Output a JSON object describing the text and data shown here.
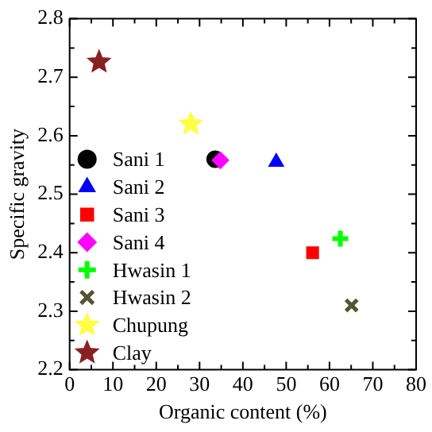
{
  "chart_data": {
    "type": "scatter",
    "xlabel": "Organic content (%)",
    "ylabel": "Specific gravity",
    "xlim": [
      0,
      80
    ],
    "xticks": [
      0,
      10,
      20,
      30,
      40,
      50,
      60,
      70,
      80
    ],
    "ylim": [
      2.2,
      2.8
    ],
    "yticks": [
      2.2,
      2.3,
      2.4,
      2.5,
      2.6,
      2.7,
      2.8
    ],
    "grid": false,
    "legend": "bottom left",
    "series": [
      {
        "name": "Sani 1",
        "color": "#000000",
        "marker": "circle",
        "x": [
          33.6
        ],
        "values": [
          2.56
        ]
      },
      {
        "name": "Sani 2",
        "color": "#0000ff",
        "marker": "triangle",
        "x": [
          47.7
        ],
        "values": [
          2.555
        ]
      },
      {
        "name": "Sani 3",
        "color": "#ff0000",
        "marker": "square",
        "x": [
          56.1
        ],
        "values": [
          2.4
        ]
      },
      {
        "name": "Sani 4",
        "color": "#ff00ff",
        "marker": "diamond",
        "x": [
          34.8
        ],
        "values": [
          2.558
        ]
      },
      {
        "name": "Hwasin 1",
        "color": "#00ff00",
        "marker": "plus",
        "x": [
          62.5
        ],
        "values": [
          2.424
        ]
      },
      {
        "name": "Hwasin 2",
        "color": "#555533",
        "marker": "cross",
        "x": [
          65.1
        ],
        "values": [
          2.31
        ]
      },
      {
        "name": "Chupung",
        "color": "#ffff44",
        "marker": "star",
        "x": [
          28
        ],
        "values": [
          2.62
        ]
      },
      {
        "name": "Clay",
        "color": "#882222",
        "marker": "star",
        "x": [
          6.8
        ],
        "values": [
          2.726
        ]
      }
    ]
  }
}
